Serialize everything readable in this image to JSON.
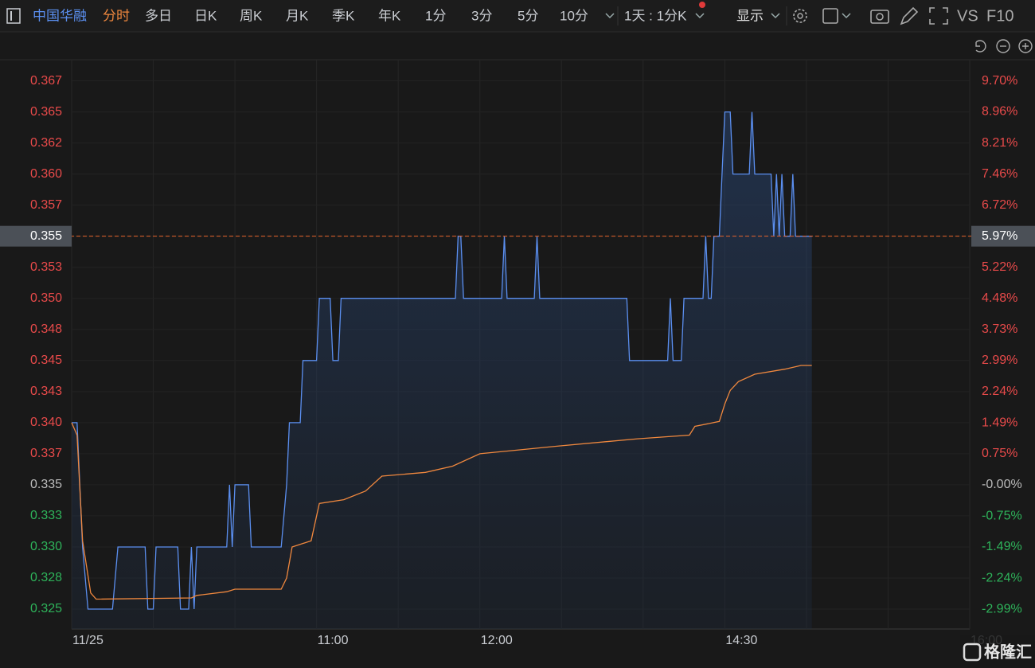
{
  "toolbar": {
    "stock": "中国华融",
    "tabs": [
      "分时",
      "多日",
      "日K",
      "周K",
      "月K",
      "季K",
      "年K",
      "1分",
      "3分",
      "5分",
      "10分"
    ],
    "active_tab": "分时",
    "period": "1天 : 1分K",
    "display": "显示",
    "vs": "VS",
    "f10": "F10"
  },
  "watermark": "格隆汇",
  "chart_data": {
    "type": "line",
    "xlim": [
      0,
      330
    ],
    "xticks": [
      {
        "value": 0,
        "label": "11/25"
      },
      {
        "value": 30,
        "label": null
      },
      {
        "value": 60,
        "label": null
      },
      {
        "value": 90,
        "label": "11:00"
      },
      {
        "value": 120,
        "label": null
      },
      {
        "value": 150,
        "label": "12:00"
      },
      {
        "value": 180,
        "label": null
      },
      {
        "value": 210,
        "label": null
      },
      {
        "value": 240,
        "label": "14:30"
      },
      {
        "value": 270,
        "label": null
      },
      {
        "value": 300,
        "label": null
      },
      {
        "value": 330,
        "label": "16:00"
      }
    ],
    "ylim": [
      0.3234,
      0.3692
    ],
    "yticks": [
      {
        "value": 0.325,
        "label": "0.325"
      },
      {
        "value": 0.3275,
        "label": "0.328"
      },
      {
        "value": 0.33,
        "label": "0.330"
      },
      {
        "value": 0.3325,
        "label": "0.333"
      },
      {
        "value": 0.335,
        "label": "0.335"
      },
      {
        "value": 0.3375,
        "label": "0.337"
      },
      {
        "value": 0.34,
        "label": "0.340"
      },
      {
        "value": 0.3425,
        "label": "0.343"
      },
      {
        "value": 0.345,
        "label": "0.345"
      },
      {
        "value": 0.3475,
        "label": "0.348"
      },
      {
        "value": 0.35,
        "label": "0.350"
      },
      {
        "value": 0.3525,
        "label": "0.353"
      },
      {
        "value": 0.355,
        "label": "0.355"
      },
      {
        "value": 0.3575,
        "label": "0.357"
      },
      {
        "value": 0.36,
        "label": "0.360"
      },
      {
        "value": 0.3625,
        "label": "0.362"
      },
      {
        "value": 0.365,
        "label": "0.365"
      },
      {
        "value": 0.3675,
        "label": "0.367"
      }
    ],
    "y2lim": [
      -3.46,
      10.21
    ],
    "y2ticks": [
      {
        "value": -2.99,
        "label": "-2.99%"
      },
      {
        "value": -2.24,
        "label": "-2.24%"
      },
      {
        "value": -1.49,
        "label": "-1.49%"
      },
      {
        "value": -0.75,
        "label": "-0.75%"
      },
      {
        "value": 0,
        "label": "-0.00%"
      },
      {
        "value": 0.75,
        "label": "0.75%"
      },
      {
        "value": 1.49,
        "label": "1.49%"
      },
      {
        "value": 2.24,
        "label": "2.24%"
      },
      {
        "value": 2.99,
        "label": "2.99%"
      },
      {
        "value": 3.73,
        "label": "3.73%"
      },
      {
        "value": 4.48,
        "label": "4.48%"
      },
      {
        "value": 5.22,
        "label": "5.22%"
      },
      {
        "value": 5.97,
        "label": "5.97%"
      },
      {
        "value": 6.72,
        "label": "6.72%"
      },
      {
        "value": 7.46,
        "label": "7.46%"
      },
      {
        "value": 8.21,
        "label": "8.21%"
      },
      {
        "value": 8.96,
        "label": "8.96%"
      },
      {
        "value": 9.7,
        "label": "9.70%"
      }
    ],
    "grid": true,
    "last_value": 0.355,
    "series": [
      {
        "color": "#5b8ff0",
        "area": true,
        "x": [
          0,
          2,
          4,
          6,
          15,
          17,
          27,
          28,
          30,
          31,
          39,
          40,
          43,
          44,
          45,
          46,
          57,
          58,
          59,
          60,
          65,
          66,
          77,
          79,
          80,
          84,
          85,
          90,
          91,
          95,
          96,
          98,
          99,
          141,
          142,
          143,
          144,
          158,
          159,
          160,
          170,
          171,
          172,
          204,
          205,
          219,
          220,
          221,
          224,
          225,
          232,
          233,
          234,
          235,
          236,
          238,
          239,
          240,
          242,
          243,
          249,
          250,
          251,
          257,
          258,
          259,
          260,
          261,
          262,
          264,
          265,
          266,
          272
        ],
        "values": [
          0.34,
          0.34,
          0.33,
          0.325,
          0.325,
          0.33,
          0.33,
          0.325,
          0.325,
          0.33,
          0.33,
          0.325,
          0.325,
          0.33,
          0.325,
          0.33,
          0.33,
          0.335,
          0.33,
          0.335,
          0.335,
          0.33,
          0.33,
          0.335,
          0.34,
          0.34,
          0.345,
          0.345,
          0.35,
          0.35,
          0.345,
          0.345,
          0.35,
          0.35,
          0.355,
          0.355,
          0.35,
          0.35,
          0.355,
          0.35,
          0.35,
          0.355,
          0.35,
          0.35,
          0.345,
          0.345,
          0.35,
          0.345,
          0.345,
          0.35,
          0.35,
          0.355,
          0.35,
          0.35,
          0.355,
          0.355,
          0.36,
          0.365,
          0.365,
          0.36,
          0.36,
          0.365,
          0.36,
          0.36,
          0.355,
          0.36,
          0.355,
          0.36,
          0.355,
          0.355,
          0.36,
          0.355,
          0.355
        ]
      },
      {
        "color": "#f0883e",
        "area": false,
        "x": [
          0,
          2,
          4,
          7,
          9,
          44,
          46,
          57,
          60,
          77,
          79,
          81,
          88,
          91,
          100,
          108,
          114,
          130,
          140,
          150,
          178,
          208,
          227,
          229,
          238,
          240,
          242,
          245,
          251,
          262,
          268,
          272
        ],
        "values": [
          0.34,
          0.339,
          0.3305,
          0.3263,
          0.3258,
          0.3259,
          0.3261,
          0.3264,
          0.3266,
          0.3266,
          0.3275,
          0.33,
          0.3305,
          0.3335,
          0.3338,
          0.3345,
          0.3357,
          0.336,
          0.3365,
          0.3375,
          0.3381,
          0.3387,
          0.339,
          0.3397,
          0.3401,
          0.3415,
          0.3426,
          0.3433,
          0.3439,
          0.3443,
          0.3446,
          0.3446
        ]
      }
    ]
  }
}
